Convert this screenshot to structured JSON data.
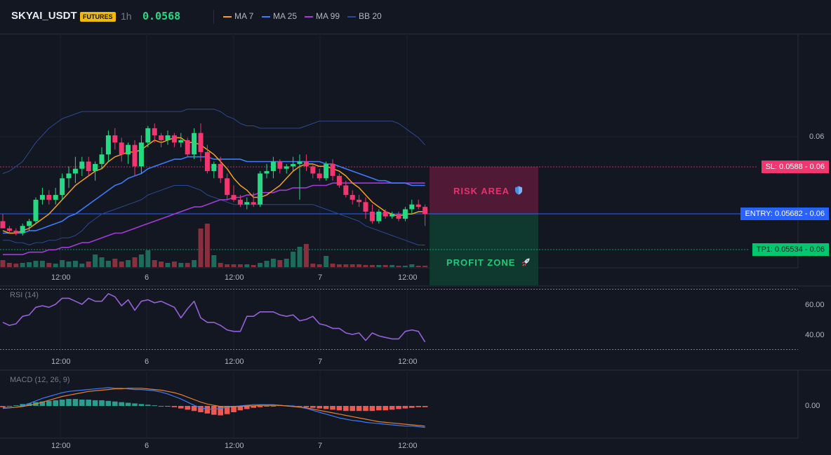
{
  "header": {
    "symbol": "SKYAI_USDT",
    "badge": "FUTURES",
    "interval": "1h",
    "last_price": "0.0568",
    "legend": [
      {
        "label": "MA 7",
        "color": "#f7a21b"
      },
      {
        "label": "MA 25",
        "color": "#3d7bfa"
      },
      {
        "label": "MA 99",
        "color": "#a23cd6"
      },
      {
        "label": "BB 20",
        "color": "#2c4a8f"
      }
    ]
  },
  "trade": {
    "sl_label": "SL: 0.0588",
    "sl_value": "0.06",
    "entry_label": "ENTRY: 0.05682",
    "entry_value": "0.06",
    "tp_label": "TP1: 0.05534",
    "tp_value": "0.06",
    "risk_label": "RISK AREA",
    "risk_icon": "shield-icon",
    "profit_label": "PROFIT ZONE",
    "profit_icon": "rocket-icon"
  },
  "colors": {
    "up": "#26d982",
    "down": "#f23670",
    "vol_up": "#1e6b5c",
    "vol_down": "#8a2f3e",
    "ma7": "#f7a21b",
    "ma25": "#3d7bfa",
    "ma99": "#a23cd6",
    "bb": "#2c4a8f",
    "rsi": "#9661d8",
    "macd": "#3d7bfa",
    "signal": "#e8802a",
    "hist_up": "#2a9d8f",
    "hist_down": "#f0584f",
    "risk_fill": "#5c1b3a",
    "profit_fill": "#0f3d30"
  },
  "time_axis": [
    "12:00",
    "6",
    "12:00",
    "7",
    "12:00"
  ],
  "price_axis": {
    "label": "0.06"
  },
  "rsi": {
    "title": "RSI (14)",
    "ticks": [
      "60.00",
      "40.00"
    ]
  },
  "macd": {
    "title": "MACD (12, 26, 9)",
    "ticks": [
      "0.00"
    ]
  },
  "chart_data": {
    "type": "candlestick",
    "ohlc": [
      [
        0.0565,
        0.0568,
        0.0562,
        0.0562
      ],
      [
        0.0562,
        0.0563,
        0.056,
        0.0561
      ],
      [
        0.0561,
        0.0562,
        0.0559,
        0.056
      ],
      [
        0.056,
        0.0564,
        0.0559,
        0.0563
      ],
      [
        0.0563,
        0.0566,
        0.0561,
        0.0565
      ],
      [
        0.0565,
        0.0575,
        0.0564,
        0.0574
      ],
      [
        0.0574,
        0.0579,
        0.0572,
        0.0576
      ],
      [
        0.0576,
        0.0578,
        0.0572,
        0.0574
      ],
      [
        0.0574,
        0.0579,
        0.0572,
        0.0576
      ],
      [
        0.0576,
        0.0585,
        0.0574,
        0.0583
      ],
      [
        0.0583,
        0.0588,
        0.0579,
        0.0585
      ],
      [
        0.0585,
        0.0592,
        0.0581,
        0.0587
      ],
      [
        0.0587,
        0.0592,
        0.0584,
        0.059
      ],
      [
        0.059,
        0.0592,
        0.0584,
        0.0586
      ],
      [
        0.0586,
        0.059,
        0.0582,
        0.0589
      ],
      [
        0.0589,
        0.0596,
        0.0587,
        0.0593
      ],
      [
        0.0593,
        0.0603,
        0.059,
        0.0601
      ],
      [
        0.0601,
        0.0604,
        0.0595,
        0.0598
      ],
      [
        0.0598,
        0.06,
        0.059,
        0.0593
      ],
      [
        0.0593,
        0.0598,
        0.0589,
        0.0597
      ],
      [
        0.0597,
        0.0599,
        0.0584,
        0.0588
      ],
      [
        0.0588,
        0.0601,
        0.0585,
        0.0598
      ],
      [
        0.0598,
        0.0605,
        0.0596,
        0.0604
      ],
      [
        0.0604,
        0.0606,
        0.0598,
        0.0601
      ],
      [
        0.0601,
        0.0602,
        0.0596,
        0.0599
      ],
      [
        0.0599,
        0.0603,
        0.0597,
        0.0601
      ],
      [
        0.0601,
        0.0602,
        0.0596,
        0.0598
      ],
      [
        0.0598,
        0.0602,
        0.0596,
        0.0599
      ],
      [
        0.0599,
        0.06,
        0.0592,
        0.0593
      ],
      [
        0.0593,
        0.0604,
        0.0591,
        0.0602
      ],
      [
        0.0602,
        0.0606,
        0.059,
        0.0594
      ],
      [
        0.0594,
        0.0597,
        0.0585,
        0.0586
      ],
      [
        0.0586,
        0.059,
        0.0583,
        0.0589
      ],
      [
        0.0589,
        0.0592,
        0.0581,
        0.0583
      ],
      [
        0.0583,
        0.0585,
        0.0574,
        0.0576
      ],
      [
        0.0576,
        0.058,
        0.0573,
        0.0574
      ],
      [
        0.0574,
        0.0576,
        0.0571,
        0.0572
      ],
      [
        0.0572,
        0.0575,
        0.057,
        0.0573
      ],
      [
        0.0573,
        0.0577,
        0.0571,
        0.0572
      ],
      [
        0.0572,
        0.0586,
        0.0571,
        0.0585
      ],
      [
        0.0585,
        0.0589,
        0.0583,
        0.0586
      ],
      [
        0.0586,
        0.0592,
        0.0583,
        0.059
      ],
      [
        0.059,
        0.0591,
        0.0585,
        0.0587
      ],
      [
        0.0587,
        0.0589,
        0.0585,
        0.0588
      ],
      [
        0.0588,
        0.0592,
        0.0586,
        0.0589
      ],
      [
        0.0589,
        0.0593,
        0.0574,
        0.059
      ],
      [
        0.059,
        0.0593,
        0.0586,
        0.0588
      ],
      [
        0.0588,
        0.0589,
        0.0583,
        0.0585
      ],
      [
        0.0585,
        0.0587,
        0.0582,
        0.0583
      ],
      [
        0.0583,
        0.059,
        0.0582,
        0.0589
      ],
      [
        0.0589,
        0.0591,
        0.0582,
        0.0584
      ],
      [
        0.0584,
        0.0585,
        0.0579,
        0.058
      ],
      [
        0.058,
        0.0582,
        0.0575,
        0.0576
      ],
      [
        0.0576,
        0.0578,
        0.0572,
        0.0574
      ],
      [
        0.0574,
        0.0576,
        0.0571,
        0.0573
      ],
      [
        0.0573,
        0.0575,
        0.0566,
        0.0569
      ],
      [
        0.0569,
        0.0572,
        0.0564,
        0.0565
      ],
      [
        0.0565,
        0.057,
        0.0564,
        0.0569
      ],
      [
        0.0569,
        0.057,
        0.0566,
        0.0567
      ],
      [
        0.0567,
        0.0569,
        0.0566,
        0.0568
      ],
      [
        0.0568,
        0.0569,
        0.0565,
        0.0566
      ],
      [
        0.0566,
        0.0571,
        0.0565,
        0.057
      ],
      [
        0.057,
        0.0574,
        0.0568,
        0.0572
      ],
      [
        0.0572,
        0.0574,
        0.057,
        0.0571
      ],
      [
        0.0571,
        0.0572,
        0.0563,
        0.0568
      ]
    ],
    "volume": [
      10,
      6,
      5,
      6,
      7,
      9,
      9,
      6,
      5,
      10,
      8,
      9,
      5,
      8,
      18,
      14,
      9,
      12,
      8,
      10,
      14,
      18,
      24,
      10,
      8,
      6,
      8,
      6,
      6,
      10,
      55,
      62,
      17,
      6,
      4,
      4,
      4,
      4,
      3,
      6,
      9,
      12,
      10,
      12,
      22,
      29,
      33,
      5,
      4,
      16,
      5,
      4,
      4,
      4,
      4,
      3,
      3,
      3,
      3,
      3,
      2,
      2,
      4,
      2,
      2
    ],
    "ma7": [
      0.0561,
      0.056,
      0.056,
      0.0561,
      0.0562,
      0.0564,
      0.0566,
      0.0568,
      0.0571,
      0.0574,
      0.0577,
      0.058,
      0.0582,
      0.0584,
      0.0586,
      0.0587,
      0.059,
      0.0592,
      0.0593,
      0.0594,
      0.0594,
      0.0595,
      0.0597,
      0.0599,
      0.0598,
      0.0599,
      0.06,
      0.06,
      0.0598,
      0.0598,
      0.0597,
      0.0595,
      0.0593,
      0.059,
      0.0587,
      0.0583,
      0.058,
      0.0578,
      0.0575,
      0.0575,
      0.0576,
      0.0578,
      0.058,
      0.0583,
      0.0586,
      0.0588,
      0.0589,
      0.0589,
      0.0588,
      0.0588,
      0.0587,
      0.0586,
      0.0584,
      0.0581,
      0.0579,
      0.0576,
      0.0573,
      0.0571,
      0.0569,
      0.0568,
      0.0567,
      0.0568,
      0.0568,
      0.0569,
      0.0569
    ],
    "ma25": [
      0.056,
      0.056,
      0.056,
      0.056,
      0.0561,
      0.0561,
      0.0562,
      0.0563,
      0.0564,
      0.0565,
      0.0567,
      0.0568,
      0.057,
      0.0572,
      0.0574,
      0.0576,
      0.0578,
      0.058,
      0.0581,
      0.0583,
      0.0584,
      0.0585,
      0.0587,
      0.0588,
      0.0589,
      0.059,
      0.0591,
      0.0591,
      0.0592,
      0.0592,
      0.0592,
      0.0592,
      0.0591,
      0.0591,
      0.0591,
      0.0591,
      0.0591,
      0.059,
      0.059,
      0.059,
      0.059,
      0.059,
      0.059,
      0.059,
      0.059,
      0.059,
      0.059,
      0.059,
      0.059,
      0.0589,
      0.0589,
      0.0588,
      0.0587,
      0.0586,
      0.0585,
      0.0584,
      0.0583,
      0.0582,
      0.0582,
      0.0581,
      0.0581,
      0.0581,
      0.058,
      0.058,
      0.058
    ],
    "ma99": [
      0.0551,
      0.0551,
      0.0551,
      0.0551,
      0.0552,
      0.0552,
      0.0552,
      0.0553,
      0.0553,
      0.0554,
      0.0554,
      0.0555,
      0.0556,
      0.0556,
      0.0557,
      0.0558,
      0.0559,
      0.056,
      0.056,
      0.0561,
      0.0562,
      0.0563,
      0.0564,
      0.0565,
      0.0566,
      0.0567,
      0.0568,
      0.0569,
      0.057,
      0.0571,
      0.0571,
      0.0572,
      0.0573,
      0.0574,
      0.0574,
      0.0575,
      0.0575,
      0.0576,
      0.0576,
      0.0577,
      0.0577,
      0.0577,
      0.0578,
      0.0578,
      0.0579,
      0.0579,
      0.0579,
      0.058,
      0.058,
      0.058,
      0.0581,
      0.0581,
      0.0581,
      0.0581,
      0.0581,
      0.0581,
      0.0581,
      0.0581,
      0.0581,
      0.0581,
      0.0581,
      0.0581,
      0.0581,
      0.0581,
      0.0581
    ],
    "bb_upper": [
      0.0585,
      0.0586,
      0.0588,
      0.059,
      0.0594,
      0.0598,
      0.0601,
      0.0604,
      0.0606,
      0.0608,
      0.0609,
      0.061,
      0.0611,
      0.0611,
      0.0611,
      0.0611,
      0.0611,
      0.0611,
      0.0611,
      0.0611,
      0.0611,
      0.0611,
      0.0611,
      0.0611,
      0.0611,
      0.0611,
      0.0611,
      0.0611,
      0.0612,
      0.0612,
      0.0612,
      0.0612,
      0.0612,
      0.0611,
      0.0609,
      0.0608,
      0.0606,
      0.0605,
      0.0605,
      0.0604,
      0.0604,
      0.0604,
      0.0604,
      0.0604,
      0.0604,
      0.0604,
      0.0605,
      0.0606,
      0.0607,
      0.0607,
      0.0607,
      0.0607,
      0.0607,
      0.0607,
      0.0607,
      0.0607,
      0.0607,
      0.0607,
      0.0607,
      0.0607,
      0.0606,
      0.0604,
      0.0602,
      0.06,
      0.0597
    ],
    "bb_lower": [
      0.0557,
      0.0557,
      0.0556,
      0.0556,
      0.0555,
      0.0556,
      0.0556,
      0.0557,
      0.0557,
      0.0558,
      0.0558,
      0.0559,
      0.0561,
      0.0564,
      0.0566,
      0.0568,
      0.0569,
      0.057,
      0.0571,
      0.0572,
      0.0573,
      0.0574,
      0.0576,
      0.0577,
      0.0578,
      0.0579,
      0.058,
      0.058,
      0.058,
      0.0579,
      0.0578,
      0.0576,
      0.0575,
      0.0574,
      0.0573,
      0.0572,
      0.0572,
      0.0572,
      0.0572,
      0.0572,
      0.0572,
      0.0572,
      0.0572,
      0.0572,
      0.0572,
      0.0572,
      0.0572,
      0.0572,
      0.0571,
      0.057,
      0.0569,
      0.0568,
      0.0567,
      0.0566,
      0.0565,
      0.0563,
      0.0562,
      0.0561,
      0.056,
      0.0559,
      0.0558,
      0.0557,
      0.0556,
      0.0555,
      0.0555
    ],
    "rsi": [
      48,
      46,
      47,
      52,
      53,
      58,
      59,
      58,
      60,
      64,
      64,
      62,
      60,
      64,
      62,
      62,
      67,
      65,
      59,
      63,
      56,
      62,
      63,
      61,
      62,
      60,
      58,
      51,
      57,
      62,
      51,
      48,
      48,
      46,
      43,
      42,
      42,
      52,
      52,
      55,
      55,
      55,
      53,
      52,
      53,
      49,
      50,
      52,
      47,
      46,
      44,
      44,
      41,
      40,
      41,
      36,
      41,
      39,
      38,
      37,
      37,
      42,
      43,
      42,
      35
    ],
    "rsi_levels": [
      70,
      30
    ],
    "macd_line": [
      -4e-05,
      -3e-05,
      -2e-05,
      0.0,
      4e-05,
      8e-05,
      0.00012,
      0.00015,
      0.00018,
      0.00021,
      0.00023,
      0.00024,
      0.00025,
      0.00026,
      0.00027,
      0.00028,
      0.00029,
      0.00028,
      0.00028,
      0.00027,
      0.00026,
      0.00026,
      0.00025,
      0.00024,
      0.00022,
      0.00019,
      0.00015,
      0.00011,
      6e-05,
      1e-05,
      -3e-05,
      -5e-05,
      -5e-05,
      -4e-05,
      -2e-05,
      -1e-05,
      0.0,
      1e-05,
      2e-05,
      2e-05,
      2e-05,
      2e-05,
      1e-05,
      0.0,
      0.0,
      -2e-05,
      -4e-05,
      -7e-05,
      -0.0001,
      -0.00013,
      -0.00016,
      -0.00019,
      -0.00021,
      -0.00023,
      -0.00024,
      -0.00026,
      -0.00027,
      -0.00028,
      -0.00029,
      -0.0003,
      -0.00031,
      -0.00032,
      -0.00032,
      -0.00033,
      -0.00034
    ],
    "signal_line": [
      -3e-05,
      -3e-05,
      -2e-05,
      -1e-05,
      1e-05,
      3e-05,
      6e-05,
      9e-05,
      0.00012,
      0.00015,
      0.00017,
      0.00019,
      0.00021,
      0.00023,
      0.00024,
      0.00025,
      0.00026,
      0.00027,
      0.00027,
      0.00028,
      0.00028,
      0.00028,
      0.00027,
      0.00026,
      0.00025,
      0.00023,
      0.00021,
      0.00018,
      0.00014,
      0.0001,
      6e-05,
      3e-05,
      1e-05,
      -1e-05,
      -1e-05,
      -1e-05,
      -1e-05,
      0.0,
      0.0,
      1e-05,
      1e-05,
      1e-05,
      1e-05,
      0.0,
      -1e-05,
      -2e-05,
      -3e-05,
      -5e-05,
      -7e-05,
      -9e-05,
      -0.00011,
      -0.00013,
      -0.00015,
      -0.00017,
      -0.00019,
      -0.00021,
      -0.00023,
      -0.00025,
      -0.00026,
      -0.00027,
      -0.00028,
      -0.00029,
      -0.0003,
      -0.00031,
      -0.00032
    ],
    "macd_hist": [
      -2e-05,
      -1e-05,
      1e-05,
      3e-05,
      4e-05,
      6e-05,
      7e-05,
      8e-05,
      9e-05,
      0.0001,
      0.00011,
      0.00011,
      0.0001,
      0.0001,
      9e-05,
      9e-05,
      8e-05,
      7e-05,
      6e-05,
      5e-05,
      4e-05,
      3e-05,
      2e-05,
      1e-05,
      0.0,
      -1e-05,
      -2e-05,
      -4e-05,
      -6e-05,
      -8e-05,
      -0.0001,
      -0.00012,
      -0.00014,
      -0.00015,
      -0.00013,
      -0.0001,
      -7e-05,
      -5e-05,
      -3e-05,
      -2e-05,
      -1e-05,
      0.0,
      1e-05,
      1e-05,
      0.0,
      -1e-05,
      -2e-05,
      -3e-05,
      -4e-05,
      -5e-05,
      -6e-05,
      -7e-05,
      -8e-05,
      -8e-05,
      -8e-05,
      -8e-05,
      -8e-05,
      -7e-05,
      -7e-05,
      -6e-05,
      -5e-05,
      -4e-05,
      -3e-05,
      -2e-05,
      -2e-05
    ]
  }
}
